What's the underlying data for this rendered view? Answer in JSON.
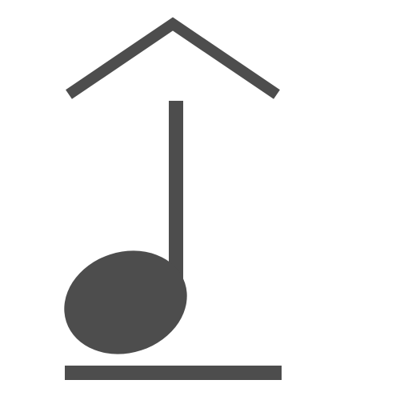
{
  "icon": {
    "name": "music-note-upload-icon",
    "color": "#4d4d4d",
    "background": "#ffffff"
  }
}
